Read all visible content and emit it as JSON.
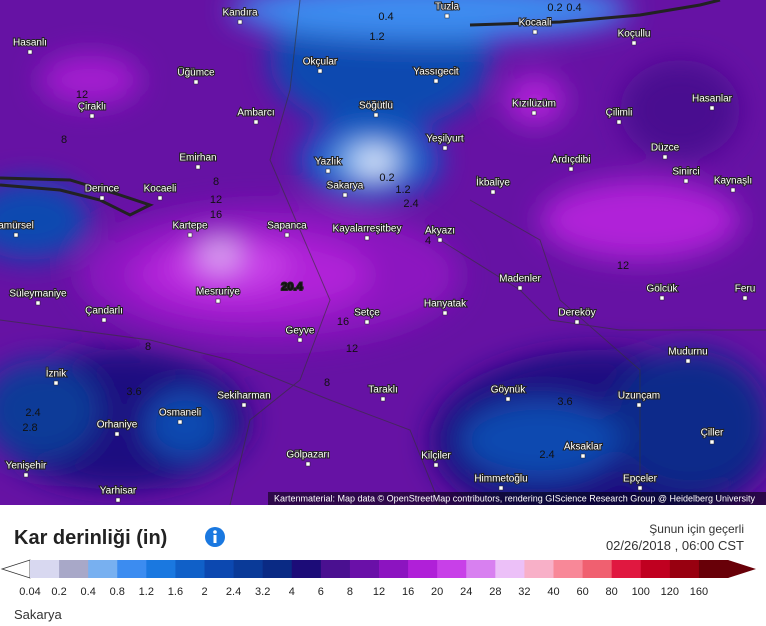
{
  "map": {
    "places": [
      "Hasanlı",
      "Kandıra",
      "Tuzla",
      "Kocaali",
      "Koçullu",
      "Okçular",
      "Yassıgecit",
      "Üğümce",
      "Çiraklı",
      "Ambarcı",
      "Söğütlü",
      "Kızılüzüm",
      "Çilimli",
      "Hasanlar",
      "Emirhan",
      "Yeşilyurt",
      "Düzce",
      "Derince",
      "Kocaeli",
      "Yazlık",
      "Sakarya",
      "İkbaliye",
      "Ardıçdibi",
      "Sinirci",
      "Kaynaşlı",
      "Kartepe",
      "Sapanca",
      "Kayalarreşitbey",
      "Akyazı",
      "amürsel",
      "Madenler",
      "Süleymaniye",
      "Mesruriye",
      "Gölcük",
      "Feru",
      "Çandarlı",
      "Setçe",
      "Hanyatak",
      "Dereköy",
      "Geyve",
      "Mudurnu",
      "İznik",
      "Taraklı",
      "Göynük",
      "Sekiharman",
      "Uzunçam",
      "Osmaneli",
      "Orhaniye",
      "Çiller",
      "Aksaklar",
      "Yenişehir",
      "Gölpazarı",
      "Kilçiler",
      "Himmetoğlu",
      "Epçeler",
      "Yarhisar"
    ],
    "contour_labels": [
      20.4,
      16,
      12,
      8,
      12,
      0.2,
      1.2,
      2.4,
      1.2,
      0.4,
      2.4,
      2.8,
      3.6,
      2.4,
      16,
      12,
      8,
      12,
      8,
      4,
      8,
      3.6,
      0.2,
      0.4
    ],
    "attribution": "Kartenmaterial: Map data © OpenStreetMap contributors, rendering GIScience Research Group @ Heidelberg University"
  },
  "legend": {
    "title": "Kar derinliği (in)",
    "valid_label": "Şunun için geçerli",
    "valid_time": "02/26/2018 , 06:00 CST",
    "scale": [
      {
        "label": 0.04,
        "color": "#d8d8f0"
      },
      {
        "label": 0.2,
        "color": "#a8a8c8"
      },
      {
        "label": 0.4,
        "color": "#78b0f0"
      },
      {
        "label": 0.8,
        "color": "#3c8cf0"
      },
      {
        "label": 1.2,
        "color": "#1a78e0"
      },
      {
        "label": 1.6,
        "color": "#1060c8"
      },
      {
        "label": 2,
        "color": "#0c48b0"
      },
      {
        "label": 2.4,
        "color": "#0a3a98"
      },
      {
        "label": 3.2,
        "color": "#0a2a84"
      },
      {
        "label": 4,
        "color": "#1c0c78"
      },
      {
        "label": 6,
        "color": "#4a1090"
      },
      {
        "label": 8,
        "color": "#6a10a8"
      },
      {
        "label": 12,
        "color": "#8c14c0"
      },
      {
        "label": 16,
        "color": "#b020d8"
      },
      {
        "label": 20,
        "color": "#c840e8"
      },
      {
        "label": 24,
        "color": "#d880f0"
      },
      {
        "label": 28,
        "color": "#ecc0f8"
      },
      {
        "label": 32,
        "color": "#f8b0c8"
      },
      {
        "label": 40,
        "color": "#f88898"
      },
      {
        "label": 60,
        "color": "#f06070"
      },
      {
        "label": 80,
        "color": "#e01840"
      },
      {
        "label": 100,
        "color": "#c00020"
      },
      {
        "label": 120,
        "color": "#980010"
      },
      {
        "label": 160,
        "color": "#680008"
      }
    ],
    "location": "Sakarya"
  }
}
